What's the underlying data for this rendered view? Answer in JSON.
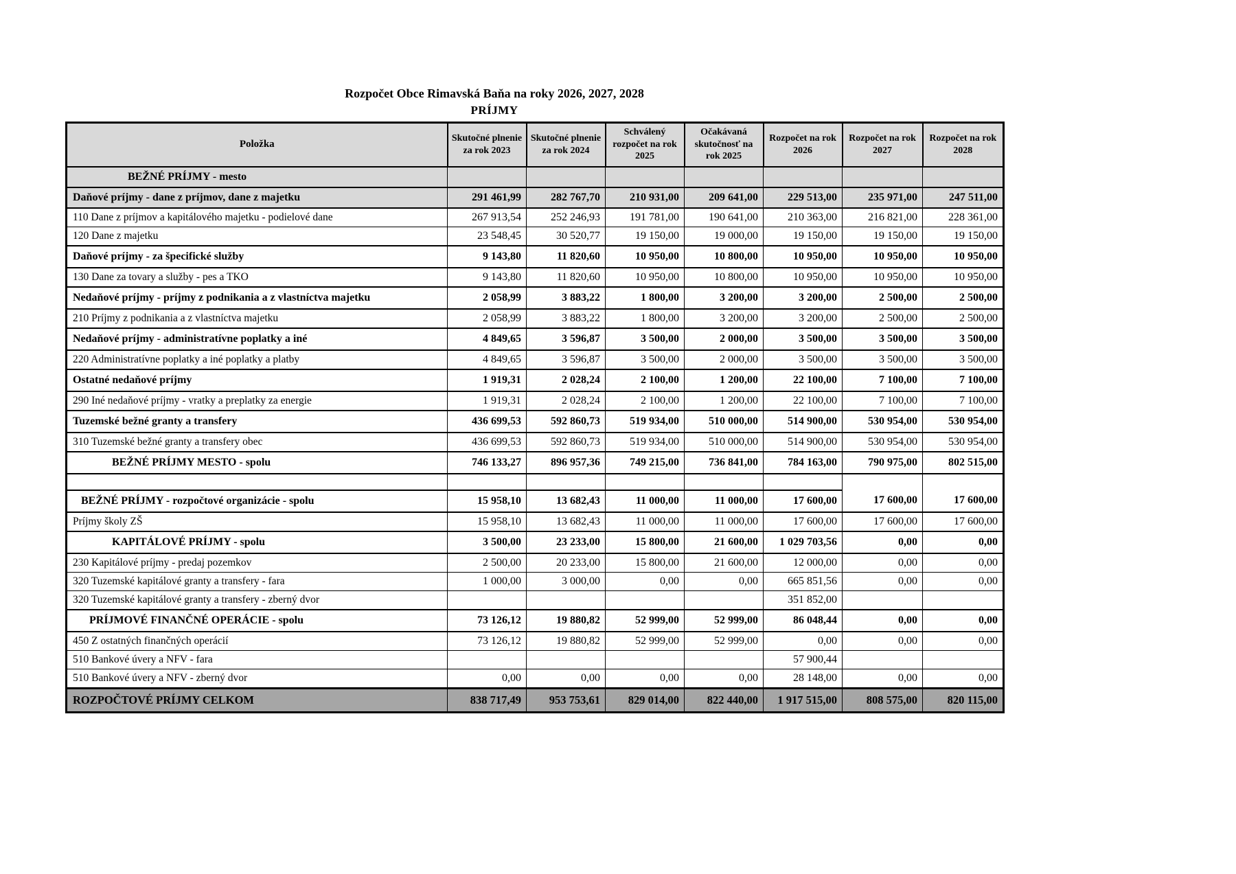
{
  "title": "Rozpočet Obce Rimavská Baňa na roky 2026, 2027, 2028",
  "subtitle": "PRÍJMY",
  "table": {
    "columns": [
      "Položka",
      "Skutočné plnenie za rok 2023",
      "Skutočné plnenie za rok 2024",
      "Schválený rozpočet na rok 2025",
      "Očakávaná skutočnosť na rok 2025",
      "Rozpočet na rok 2026",
      "Rozpočet na rok 2027",
      "Rozpočet na rok 2028"
    ],
    "rows": [
      {
        "type": "section",
        "indent": 88,
        "label": "BEŽNÉ PRÍJMY - mesto",
        "values": [
          "",
          "",
          "",
          "",
          "",
          "",
          ""
        ]
      },
      {
        "type": "cat-gray",
        "label": "Daňové príjmy - dane z príjmov, dane z majetku",
        "values": [
          "291 461,99",
          "282 767,70",
          "210 931,00",
          "209 641,00",
          "229 513,00",
          "235 971,00",
          "247 511,00"
        ]
      },
      {
        "type": "item",
        "label": "110 Dane z príjmov a kapitálového majetku - podielové dane",
        "values": [
          "267 913,54",
          "252 246,93",
          "191 781,00",
          "190 641,00",
          "210 363,00",
          "216 821,00",
          "228 361,00"
        ]
      },
      {
        "type": "item",
        "label": "120 Dane z majetku",
        "values": [
          "23 548,45",
          "30 520,77",
          "19 150,00",
          "19 000,00",
          "19 150,00",
          "19 150,00",
          "19 150,00"
        ]
      },
      {
        "type": "cat",
        "label": "Daňové príjmy - za špecifické služby",
        "values": [
          "9 143,80",
          "11 820,60",
          "10 950,00",
          "10 800,00",
          "10 950,00",
          "10 950,00",
          "10 950,00"
        ]
      },
      {
        "type": "item",
        "label": "130 Dane za tovary a služby - pes a TKO",
        "values": [
          "9 143,80",
          "11 820,60",
          "10 950,00",
          "10 800,00",
          "10 950,00",
          "10 950,00",
          "10 950,00"
        ]
      },
      {
        "type": "cat",
        "label": "Nedaňové príjmy - príjmy z podnikania a z vlastníctva majetku",
        "values": [
          "2 058,99",
          "3 883,22",
          "1 800,00",
          "3 200,00",
          "3 200,00",
          "2 500,00",
          "2 500,00"
        ]
      },
      {
        "type": "item",
        "label": "210 Príjmy z podnikania a z vlastníctva majetku",
        "values": [
          "2 058,99",
          "3 883,22",
          "1 800,00",
          "3 200,00",
          "3 200,00",
          "2 500,00",
          "2 500,00"
        ]
      },
      {
        "type": "cat",
        "label": "Nedaňové príjmy - administratívne poplatky a iné",
        "values": [
          "4 849,65",
          "3 596,87",
          "3 500,00",
          "2 000,00",
          "3 500,00",
          "3 500,00",
          "3 500,00"
        ]
      },
      {
        "type": "item",
        "label": "220 Administratívne poplatky a iné poplatky a platby",
        "values": [
          "4 849,65",
          "3 596,87",
          "3 500,00",
          "2 000,00",
          "3 500,00",
          "3 500,00",
          "3 500,00"
        ]
      },
      {
        "type": "cat",
        "label": "Ostatné nedaňové príjmy",
        "values": [
          "1 919,31",
          "2 028,24",
          "2 100,00",
          "1 200,00",
          "22 100,00",
          "7 100,00",
          "7 100,00"
        ]
      },
      {
        "type": "item",
        "label": "290 Iné nedaňové príjmy - vratky a preplatky za energie",
        "values": [
          "1 919,31",
          "2 028,24",
          "2 100,00",
          "1 200,00",
          "22 100,00",
          "7 100,00",
          "7 100,00"
        ]
      },
      {
        "type": "cat",
        "label": "Tuzemské bežné granty a transfery",
        "values": [
          "436 699,53",
          "592 860,73",
          "519 934,00",
          "510 000,00",
          "514 900,00",
          "530 954,00",
          "530 954,00"
        ]
      },
      {
        "type": "item",
        "label": "310 Tuzemské bežné granty a transfery obec",
        "values": [
          "436 699,53",
          "592 860,73",
          "519 934,00",
          "510 000,00",
          "514 900,00",
          "530 954,00",
          "530 954,00"
        ]
      },
      {
        "type": "subtotal",
        "indent": 65,
        "label": "BEŽNÉ PRÍJMY MESTO - spolu",
        "values": [
          "746 133,27",
          "896 957,36",
          "749 215,00",
          "736 841,00",
          "784 163,00",
          "790 975,00",
          "802 515,00"
        ]
      },
      {
        "type": "blank",
        "label": "",
        "values": [
          "",
          "",
          "",
          "",
          "",
          "",
          ""
        ],
        "merge_cols": [
          5,
          6
        ]
      },
      {
        "type": "cat",
        "indent": 20,
        "label": "BEŽNÉ PRÍJMY - rozpočtové organizácie - spolu",
        "values": [
          "15 958,10",
          "13 682,43",
          "11 000,00",
          "11 000,00",
          "17 600,00",
          "17 600,00",
          "17 600,00"
        ]
      },
      {
        "type": "item",
        "label": "Príjmy školy ZŠ",
        "values": [
          "15 958,10",
          "13 682,43",
          "11 000,00",
          "11 000,00",
          "17 600,00",
          "17 600,00",
          "17 600,00"
        ]
      },
      {
        "type": "subtotal",
        "indent": 65,
        "label": "KAPITÁLOVÉ PRÍJMY - spolu",
        "values": [
          "3 500,00",
          "23 233,00",
          "15 800,00",
          "21 600,00",
          "1 029 703,56",
          "0,00",
          "0,00"
        ]
      },
      {
        "type": "item",
        "label": "230 Kapitálové príjmy - predaj pozemkov",
        "values": [
          "2 500,00",
          "20 233,00",
          "15 800,00",
          "21 600,00",
          "12 000,00",
          "0,00",
          "0,00"
        ]
      },
      {
        "type": "item",
        "label": "320 Tuzemské kapitálové granty a transfery - fara",
        "values": [
          "1 000,00",
          "3 000,00",
          "0,00",
          "0,00",
          "665 851,56",
          "0,00",
          "0,00"
        ]
      },
      {
        "type": "item",
        "label": "320 Tuzemské kapitálové granty a transfery - zberný dvor",
        "values": [
          "",
          "",
          "",
          "",
          "351 852,00",
          "",
          ""
        ]
      },
      {
        "type": "subtotal",
        "indent": 32,
        "label": "PRÍJMOVÉ FINANČNÉ OPERÁCIE - spolu",
        "values": [
          "73 126,12",
          "19 880,82",
          "52 999,00",
          "52 999,00",
          "86 048,44",
          "0,00",
          "0,00"
        ]
      },
      {
        "type": "item",
        "label": "450 Z ostatných finančných operácií",
        "values": [
          "73 126,12",
          "19 880,82",
          "52 999,00",
          "52 999,00",
          "0,00",
          "0,00",
          "0,00"
        ]
      },
      {
        "type": "item",
        "label": "510 Bankové úvery a NFV - fara",
        "values": [
          "",
          "",
          "",
          "",
          "57 900,44",
          "",
          ""
        ]
      },
      {
        "type": "item",
        "label": "510 Bankové úvery a NFV - zberný dvor",
        "values": [
          "0,00",
          "0,00",
          "0,00",
          "0,00",
          "28 148,00",
          "0,00",
          "0,00"
        ]
      },
      {
        "type": "total",
        "label": "ROZPOČTOVÉ PRÍJMY  CELKOM",
        "values": [
          "838 717,49",
          "953 753,61",
          "829 014,00",
          "822 440,00",
          "1 917 515,00",
          "808 575,00",
          "820 115,00"
        ]
      }
    ]
  }
}
